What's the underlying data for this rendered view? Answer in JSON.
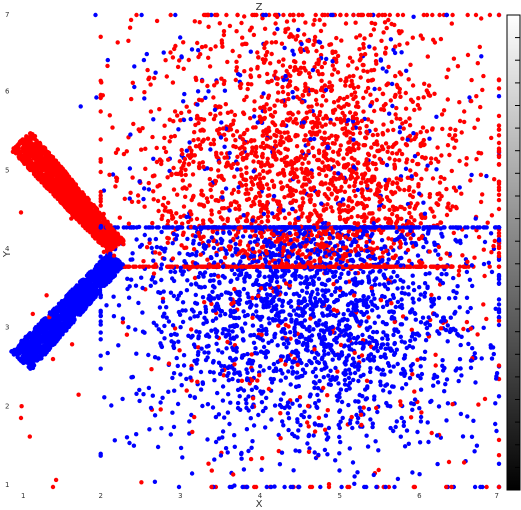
{
  "chart_data": {
    "type": "scatter",
    "title": "Z",
    "xlabel": "X",
    "ylabel": "Y",
    "xlim": [
      1,
      7
    ],
    "ylim": [
      1,
      7
    ],
    "x_ticks": [
      "1",
      "2",
      "3",
      "4",
      "5",
      "6",
      "7"
    ],
    "y_ticks": [
      "1",
      "2",
      "3",
      "4",
      "5",
      "6",
      "7"
    ],
    "grid": false,
    "colorbar": {
      "position": "right",
      "gradient": "white-to-black",
      "tick_labels_visible": false
    },
    "series": [
      {
        "color": "#ff0000",
        "structures": [
          {
            "shape": "band",
            "from": [
              1.0,
              5.4
            ],
            "to": [
              2.2,
              4.05
            ],
            "width": 0.35,
            "count": 1400
          },
          {
            "shape": "cloud",
            "center": [
              4.6,
              4.9
            ],
            "spread": [
              1.1,
              1.1
            ],
            "bounds": [
              [
                2.0,
                7.0
              ],
              [
                3.8,
                7.0
              ]
            ],
            "count": 2400
          },
          {
            "shape": "scatter",
            "center": [
              4.6,
              3.0
            ],
            "spread": [
              1.3,
              1.2
            ],
            "bounds": [
              [
                1.0,
                7.0
              ],
              [
                1.0,
                7.0
              ]
            ],
            "count": 300
          }
        ]
      },
      {
        "color": "#0000ff",
        "structures": [
          {
            "shape": "band",
            "from": [
              1.0,
              2.6
            ],
            "to": [
              2.2,
              3.9
            ],
            "width": 0.35,
            "count": 1400
          },
          {
            "shape": "cloud",
            "center": [
              4.6,
              3.4
            ],
            "spread": [
              1.1,
              1.0
            ],
            "bounds": [
              [
                2.0,
                7.0
              ],
              [
                1.0,
                4.3
              ]
            ],
            "count": 2400
          },
          {
            "shape": "scatter",
            "center": [
              4.4,
              5.0
            ],
            "spread": [
              1.2,
              1.1
            ],
            "bounds": [
              [
                1.0,
                7.0
              ],
              [
                1.0,
                7.0
              ]
            ],
            "count": 300
          }
        ]
      }
    ]
  }
}
